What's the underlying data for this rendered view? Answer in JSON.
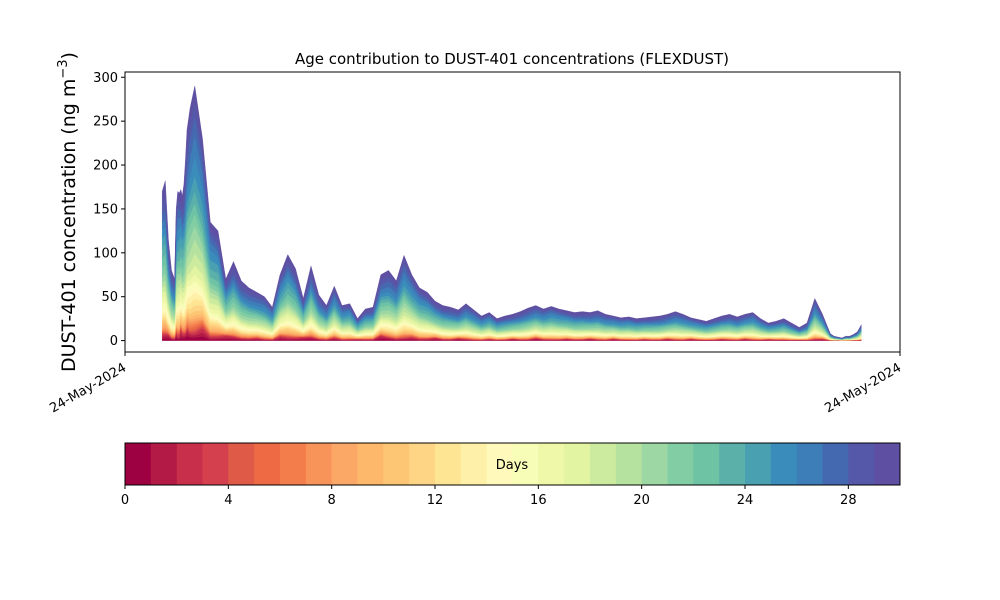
{
  "chart_data": {
    "type": "area",
    "stacked": true,
    "title": "Age contribution to DUST-401 concentrations (FLEXDUST)",
    "ylabel_main": "DUST-401 concentration (ng m",
    "ylabel_exp": "−3",
    "ylabel_close": ")",
    "ylim": [
      -13,
      306
    ],
    "yticks": [
      0,
      50,
      100,
      150,
      200,
      250,
      300
    ],
    "ytick_labels": [
      "0",
      "50",
      "100",
      "150",
      "200",
      "250",
      "300"
    ],
    "xtick_labels": [
      "24-May-2024",
      "24-May-2024"
    ],
    "x": [
      0.048,
      0.052,
      0.056,
      0.06,
      0.064,
      0.066,
      0.068,
      0.07,
      0.072,
      0.074,
      0.076,
      0.078,
      0.08,
      0.084,
      0.09,
      0.1,
      0.11,
      0.12,
      0.13,
      0.14,
      0.15,
      0.16,
      0.17,
      0.18,
      0.19,
      0.2,
      0.21,
      0.22,
      0.23,
      0.24,
      0.25,
      0.26,
      0.27,
      0.28,
      0.29,
      0.3,
      0.31,
      0.32,
      0.33,
      0.34,
      0.35,
      0.36,
      0.37,
      0.38,
      0.39,
      0.4,
      0.41,
      0.42,
      0.43,
      0.44,
      0.45,
      0.46,
      0.47,
      0.48,
      0.49,
      0.5,
      0.51,
      0.52,
      0.53,
      0.54,
      0.55,
      0.56,
      0.57,
      0.58,
      0.59,
      0.6,
      0.61,
      0.62,
      0.63,
      0.64,
      0.65,
      0.66,
      0.67,
      0.68,
      0.69,
      0.7,
      0.71,
      0.72,
      0.73,
      0.74,
      0.75,
      0.76,
      0.77,
      0.78,
      0.79,
      0.8,
      0.81,
      0.82,
      0.83,
      0.84,
      0.85,
      0.86,
      0.87,
      0.88,
      0.89,
      0.9,
      0.91,
      0.915,
      0.92,
      0.925,
      0.93,
      0.935,
      0.94,
      0.945,
      0.95
    ],
    "total": [
      170,
      182,
      115,
      80,
      70,
      150,
      170,
      168,
      172,
      165,
      178,
      205,
      240,
      265,
      290,
      230,
      135,
      125,
      70,
      90,
      68,
      60,
      55,
      50,
      38,
      75,
      98,
      82,
      48,
      85,
      52,
      40,
      62,
      40,
      42,
      25,
      36,
      38,
      75,
      80,
      68,
      97,
      75,
      60,
      55,
      45,
      40,
      38,
      35,
      42,
      35,
      28,
      32,
      25,
      28,
      30,
      33,
      37,
      40,
      36,
      39,
      36,
      34,
      32,
      33,
      32,
      34,
      30,
      28,
      26,
      27,
      25,
      26,
      27,
      28,
      30,
      33,
      30,
      26,
      24,
      22,
      25,
      28,
      30,
      27,
      30,
      32,
      25,
      20,
      22,
      25,
      20,
      15,
      20,
      48,
      30,
      8,
      5,
      4,
      3,
      5,
      5,
      7,
      10,
      18
    ],
    "profile": [
      0.35,
      0.3,
      0.25,
      0.22,
      0.2,
      0.22,
      0.25,
      0.3,
      0.35,
      0.4,
      0.45,
      0.5,
      0.55,
      0.6,
      0.65,
      0.75,
      0.85,
      0.95,
      1.05,
      1.15,
      1.25,
      1.35,
      1.45,
      1.55,
      1.6,
      1.7,
      1.75,
      1.8,
      1.85,
      1.9
    ],
    "colorbar": {
      "label": "Days",
      "ticks": [
        0,
        4,
        8,
        12,
        16,
        20,
        24,
        28
      ],
      "range": [
        0,
        30
      ],
      "colors": [
        "#9e0142",
        "#b31a46",
        "#c72f4a",
        "#d5404e",
        "#e05a48",
        "#ed6a45",
        "#f47d4c",
        "#f8945a",
        "#fba765",
        "#fdb86c",
        "#fdc675",
        "#fed584",
        "#fee593",
        "#fef0a8",
        "#fffabc",
        "#f7fcb7",
        "#eef8a8",
        "#e2f3a1",
        "#cceb9e",
        "#b6e2a0",
        "#9dd7a3",
        "#82cda4",
        "#6fc3a5",
        "#5bb1a9",
        "#49a0b1",
        "#3a8dbb",
        "#3d7db8",
        "#4569b0",
        "#5558a8",
        "#5e4fa2"
      ]
    }
  }
}
